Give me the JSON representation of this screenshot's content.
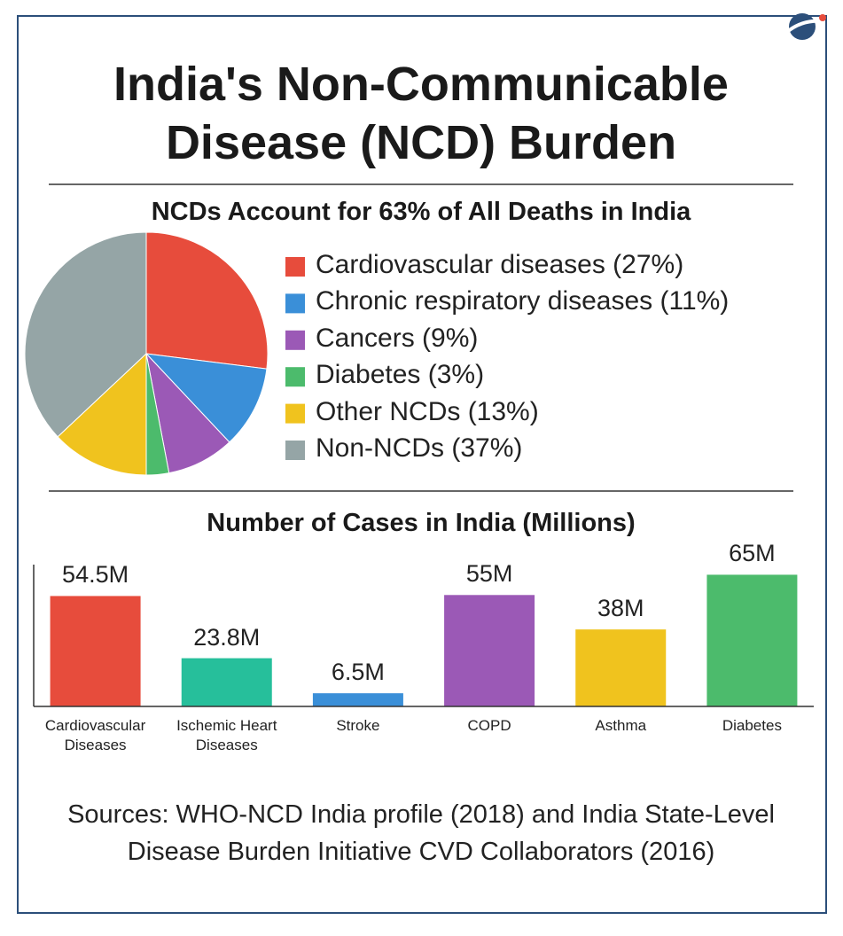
{
  "title": "India's Non-Communicable Disease (NCD) Burden",
  "chart_data": [
    {
      "type": "pie",
      "title": "NCDs Account for 63% of All Deaths in India",
      "categories": [
        "Cardiovascular diseases (27%)",
        "Chronic respiratory diseases (11%)",
        "Cancers (9%)",
        "Diabetes (3%)",
        "Other NCDs (13%)",
        "Non-NCDs (37%)"
      ],
      "values": [
        27,
        11,
        9,
        3,
        13,
        37
      ],
      "colors": [
        "#e74c3c",
        "#3a8fd8",
        "#9b59b6",
        "#4cbb6c",
        "#f0c31e",
        "#95a5a6"
      ]
    },
    {
      "type": "bar",
      "title": "Number of Cases in India (Millions)",
      "categories": [
        "Cardiovascular Diseases",
        "Ischemic Heart Diseases",
        "Stroke",
        "COPD",
        "Asthma",
        "Diabetes"
      ],
      "values": [
        54.5,
        23.8,
        6.5,
        55,
        38,
        65
      ],
      "value_labels": [
        "54.5M",
        "23.8M",
        "6.5M",
        "55M",
        "38M",
        "65M"
      ],
      "colors": [
        "#e74c3c",
        "#26bf9b",
        "#3a8fd8",
        "#9b59b6",
        "#f0c31e",
        "#4cbb6c"
      ],
      "ylim": [
        0,
        70
      ]
    }
  ],
  "sources": "Sources: WHO-NCD India profile (2018) and India State-Level Disease Burden Initiative CVD Collaborators (2016)"
}
